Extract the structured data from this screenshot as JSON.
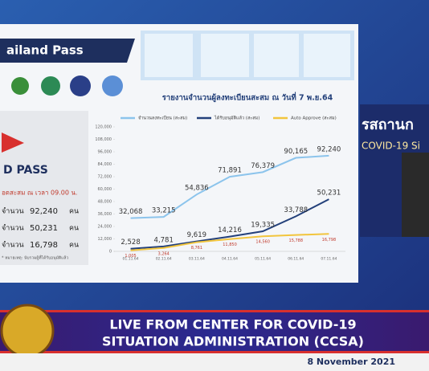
{
  "header": {
    "title": "ailand Pass"
  },
  "left_panel": {
    "logo_text": "D PASS",
    "subtitle": "อดสะสม ณ เวลา 09.00 น.",
    "rows": [
      [
        "จำนวน",
        "92,240",
        "คน"
      ],
      [
        "จำนวน",
        "50,231",
        "คน"
      ],
      [
        "จำนวน",
        "16,798",
        "คน"
      ]
    ],
    "note": "* หมายเหตุ: นับรวมผู้ที่ได้รับอนุมัติแล้ว"
  },
  "chart_data": {
    "type": "line",
    "title": "รายงานจำนวนผู้ลงทะเบียนสะสม ณ วันที่ 7 พ.ย.64",
    "categories": [
      "01.11.64",
      "02.11.64",
      "03.11.64",
      "04.11.64",
      "05.11.64",
      "06.11.64",
      "07.11.64"
    ],
    "series": [
      {
        "name": "จำนวนลงทะเบียน (สะสม)",
        "color": "#8cc4ec",
        "label_color": "#333333",
        "values": [
          32068,
          33215,
          54836,
          71891,
          76379,
          90165,
          92240
        ],
        "value_labels": [
          "32,068",
          "33,215",
          "54,836",
          "71,891",
          "76,379",
          "90,165",
          "92,240"
        ]
      },
      {
        "name": "ได้รับอนุมัติแล้ว (สะสม)",
        "color": "#23407a",
        "label_color": "#333333",
        "values": [
          2528,
          4781,
          9619,
          14216,
          19335,
          33788,
          50231
        ],
        "value_labels": [
          "2,528",
          "4,781",
          "9,619",
          "14,216",
          "19,335",
          "33,788",
          "50,231"
        ]
      },
      {
        "name": "Auto Approve (สะสม)",
        "color": "#f2c53d",
        "label_color": "#c0392b",
        "values": [
          1005,
          3264,
          8761,
          11850,
          14560,
          15788,
          16798
        ],
        "value_labels": [
          "1,005",
          "3,264",
          "8,761",
          "11,850",
          "14,560",
          "15,788",
          "16,798"
        ]
      }
    ],
    "ylim": [
      0,
      120000
    ],
    "yticks": [
      0,
      {
        "value": 12000,
        "label": "12,000"
      },
      {
        "value": 24000,
        "label": "24,000"
      },
      {
        "value": 36000,
        "label": "36,000"
      },
      {
        "value": 48000,
        "label": "48,000"
      },
      {
        "value": 60000,
        "label": "60,000"
      },
      {
        "value": 72000,
        "label": "72,000"
      },
      {
        "value": 84000,
        "label": "84,000"
      },
      {
        "value": 96000,
        "label": "96,000"
      },
      {
        "value": 108000,
        "label": "108,000"
      },
      {
        "value": 120000,
        "label": "120,000"
      }
    ],
    "grid": false
  },
  "side_panel": {
    "line1": "รสถานก",
    "line2": "COVID-19 Si"
  },
  "banner": {
    "line1": "LIVE FROM CENTER FOR COVID-19",
    "line2": "SITUATION ADMINISTRATION (CCSA)",
    "date": "8 November 2021"
  }
}
